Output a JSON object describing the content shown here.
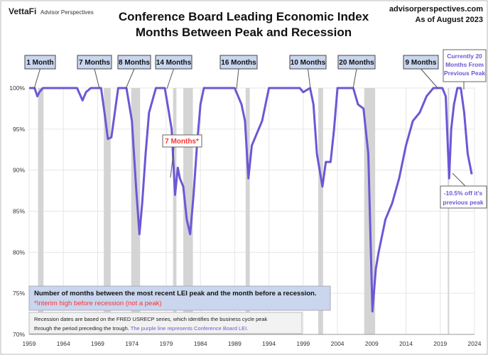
{
  "header": {
    "brand": "VettaFi",
    "brand_sub": "Advisor Perspectives",
    "title_line1": "Conference Board Leading Economic Index",
    "title_line2": "Months Between Peak and Recession",
    "site": "advisorperspectives.com",
    "as_of": "As of August 2023"
  },
  "colors": {
    "line": "#6a58d6",
    "recession": "#d4d4d4",
    "callout_fill": "#c9d6ee",
    "red": "#ff3333"
  },
  "callouts": [
    {
      "text": "1 Month"
    },
    {
      "text": "7 Months"
    },
    {
      "text": "8 Months"
    },
    {
      "text": "14 Months"
    },
    {
      "text": "16 Months"
    },
    {
      "text": "10 Months"
    },
    {
      "text": "20 Months"
    },
    {
      "text": "9 Months"
    }
  ],
  "current_callout": {
    "line1": "Currently 20",
    "line2": "Months From",
    "line3": "Previous Peak"
  },
  "interim_callout": {
    "text": "7 Months*"
  },
  "off_peak_callout": {
    "line1": "-10.5% off it's",
    "line2": "previous peak"
  },
  "legend_box": {
    "line1": "Number of months between the most recent LEI peak and the month before a recession.",
    "line2": "*Interim high before recession (not a peak)"
  },
  "note_box": {
    "line1": "Recession dates are based on the FRED USRECP series, which identifies the business cycle peak",
    "line2a": "through the period preceding the trough. ",
    "line2b": "The purple line represents Conference Board LEI."
  },
  "chart_data": {
    "type": "line",
    "xlim": [
      1959,
      2024
    ],
    "ylim": [
      70,
      100
    ],
    "xticks": [
      "1959",
      "1964",
      "1969",
      "1974",
      "1979",
      "1984",
      "1989",
      "1994",
      "1999",
      "2004",
      "2009",
      "2014",
      "2019",
      "2024"
    ],
    "yticks": [
      "70%",
      "75%",
      "80%",
      "85%",
      "90%",
      "95%",
      "100%"
    ],
    "grid": true,
    "recessions": [
      [
        1960.3,
        1961.1
      ],
      [
        1969.9,
        1970.9
      ],
      [
        1973.9,
        1975.2
      ],
      [
        1980.0,
        1980.5
      ],
      [
        1981.5,
        1982.9
      ],
      [
        1990.6,
        1991.2
      ],
      [
        2001.2,
        2001.9
      ],
      [
        2007.9,
        2009.5
      ],
      [
        2020.1,
        2020.3
      ]
    ],
    "series": [
      {
        "x": [
          1959,
          1959.8,
          1960.2,
          1960.5,
          1961,
          1966,
          1966.8,
          1967.3,
          1968,
          1969.5,
          1970,
          1970.5,
          1971,
          1971.5,
          1972,
          1973.2,
          1973.5,
          1974,
          1974.6,
          1975.1,
          1975.5,
          1976,
          1976.5,
          1977.5,
          1978.8,
          1979.2,
          1979.8,
          1980.3,
          1980.7,
          1981,
          1981.5,
          1982,
          1982.5,
          1983,
          1983.5,
          1984,
          1984.5,
          1989,
          1989.5,
          1990,
          1990.5,
          1991,
          1991.5,
          1992,
          1993,
          1994,
          1998.5,
          1999,
          2000,
          2000.5,
          2001,
          2001.8,
          2002.3,
          2003,
          2003.5,
          2004,
          2006.3,
          2007,
          2007.8,
          2008.5,
          2009.1,
          2009.6,
          2010,
          2011,
          2012,
          2013,
          2014,
          2015,
          2016,
          2017,
          2018,
          2019.3,
          2019.8,
          2020.3,
          2020.6,
          2021,
          2021.5,
          2022,
          2022.5,
          2023,
          2023.6
        ],
        "y": [
          100,
          100,
          99,
          99.5,
          100,
          100,
          98.5,
          99.5,
          100,
          100,
          97,
          93.8,
          94,
          97,
          100,
          100,
          98.5,
          96,
          88,
          82.2,
          86,
          92,
          97,
          100,
          100,
          98,
          95,
          87,
          90.3,
          89,
          88,
          84,
          82.2,
          87,
          93,
          98,
          100,
          100,
          99,
          98,
          96,
          89,
          93,
          94,
          96,
          100,
          100,
          99.5,
          100,
          98,
          92,
          88,
          91,
          91,
          95,
          100,
          100,
          98,
          97.5,
          92,
          72.8,
          78,
          80,
          84,
          86,
          89,
          93,
          96,
          97,
          99,
          100,
          100,
          99,
          89,
          95,
          98,
          100,
          100,
          97,
          92,
          89.5
        ]
      }
    ]
  }
}
